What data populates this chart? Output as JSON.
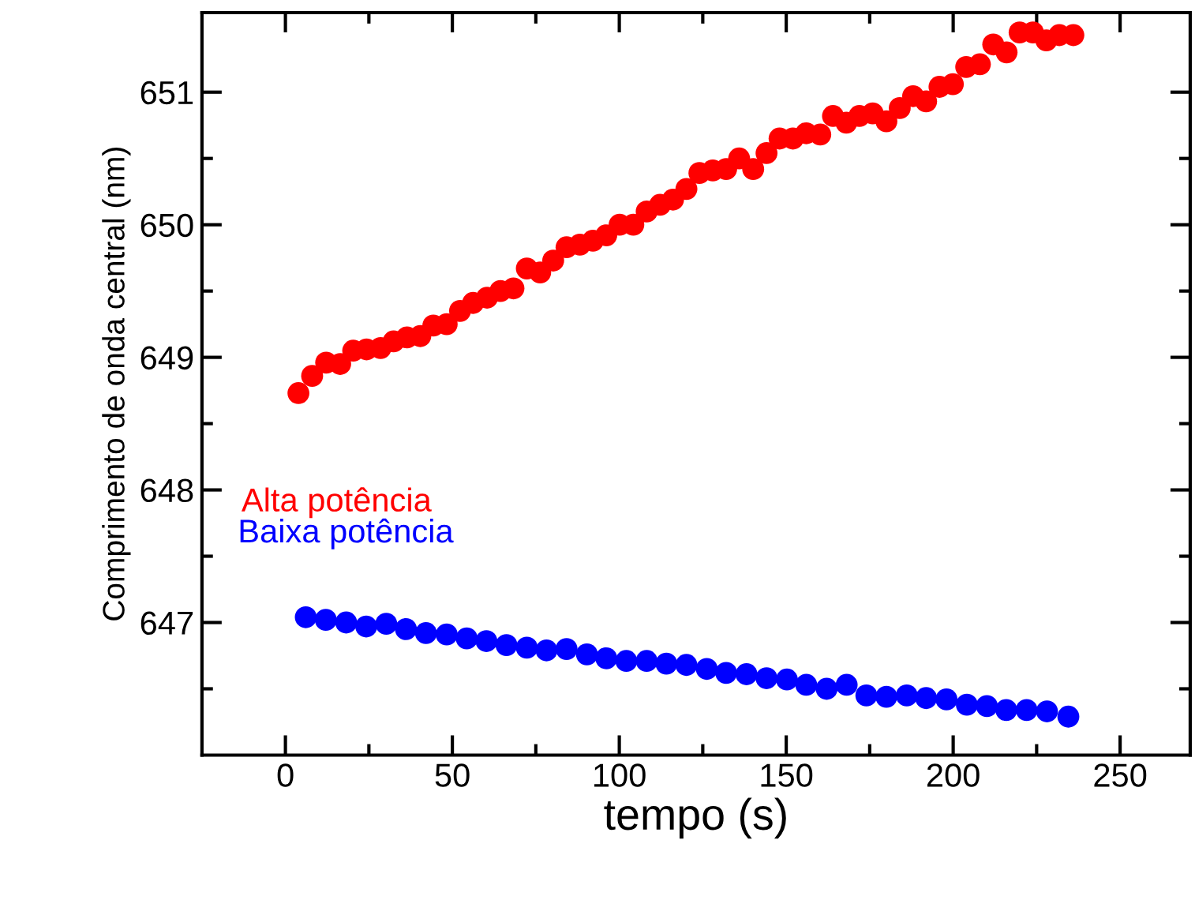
{
  "chart_data": {
    "type": "scatter",
    "xlabel": "tempo (s)",
    "ylabel": "Comprimento de onda central (nm)",
    "marker": "circle",
    "grid": false,
    "legend": false,
    "xlim": [
      -25,
      271
    ],
    "ylim": [
      646.0,
      651.6
    ],
    "xticks": [
      0,
      {
        "value": 25,
        "label": null
      },
      50,
      {
        "value": 75,
        "label": null
      },
      100,
      {
        "value": 125,
        "label": null
      },
      150,
      {
        "value": 175,
        "label": null
      },
      200,
      {
        "value": 225,
        "label": null
      },
      250
    ],
    "yticks": [
      {
        "value": 646.5,
        "label": null
      },
      647,
      {
        "value": 647.5,
        "label": null
      },
      648,
      {
        "value": 648.5,
        "label": null
      },
      649,
      {
        "value": 649.5,
        "label": null
      },
      650,
      {
        "value": 650.5,
        "label": null
      },
      651
    ],
    "series": [
      {
        "name": "Alta potência",
        "color": "#ff0000",
        "x": [
          3.9,
          8.0,
          12.2,
          16.4,
          20.3,
          24.3,
          28.5,
          32.4,
          36.4,
          40.4,
          44.3,
          48.3,
          52.3,
          56.2,
          60.4,
          64.4,
          68.3,
          72.3,
          76.3,
          80.2,
          84.2,
          88.2,
          92.1,
          96.1,
          100.1,
          104.2,
          108.2,
          112.2,
          116.1,
          120.1,
          124.0,
          128.0,
          132.0,
          135.9,
          140.1,
          144.1,
          148.0,
          152.0,
          156.0,
          160.2,
          164.0,
          168.0,
          171.9,
          175.9,
          180.0,
          184.0,
          188.0,
          191.9,
          195.9,
          199.9,
          203.9,
          208.0,
          212.0,
          216.0,
          219.9,
          223.9,
          227.9,
          231.8,
          236.0
        ],
        "values": [
          648.73,
          648.86,
          648.96,
          648.95,
          649.05,
          649.06,
          649.07,
          649.12,
          649.15,
          649.16,
          649.24,
          649.25,
          649.35,
          649.41,
          649.45,
          649.5,
          649.52,
          649.67,
          649.64,
          649.73,
          649.83,
          649.85,
          649.88,
          649.92,
          650.0,
          650.0,
          650.1,
          650.15,
          650.19,
          650.27,
          650.39,
          650.41,
          650.42,
          650.5,
          650.42,
          650.54,
          650.65,
          650.65,
          650.69,
          650.68,
          650.82,
          650.77,
          650.82,
          650.84,
          650.78,
          650.88,
          650.97,
          650.93,
          651.04,
          651.06,
          651.19,
          651.21,
          651.36,
          651.3,
          651.45,
          651.45,
          651.39,
          651.43,
          651.43
        ]
      },
      {
        "name": "Baixa potência",
        "color": "#0000ff",
        "x": [
          6.1,
          12.1,
          18.2,
          24.2,
          30.2,
          36.1,
          42.1,
          48.3,
          54.3,
          60.2,
          66.2,
          72.3,
          78.2,
          84.2,
          90.3,
          96.1,
          102.1,
          108.2,
          114.1,
          120.1,
          126.2,
          132.0,
          138.1,
          144.1,
          150.2,
          156.0,
          162.1,
          168.1,
          174.0,
          180.0,
          186.1,
          191.9,
          198.0,
          204.1,
          210.1,
          215.9,
          222.0,
          228.1,
          234.5
        ],
        "values": [
          647.04,
          647.02,
          647.0,
          646.97,
          646.99,
          646.95,
          646.92,
          646.91,
          646.88,
          646.86,
          646.83,
          646.81,
          646.79,
          646.8,
          646.76,
          646.73,
          646.71,
          646.71,
          646.69,
          646.68,
          646.65,
          646.62,
          646.61,
          646.58,
          646.57,
          646.53,
          646.5,
          646.53,
          646.45,
          646.44,
          646.45,
          646.43,
          646.42,
          646.38,
          646.37,
          646.34,
          646.34,
          646.33,
          646.29
        ]
      }
    ]
  }
}
